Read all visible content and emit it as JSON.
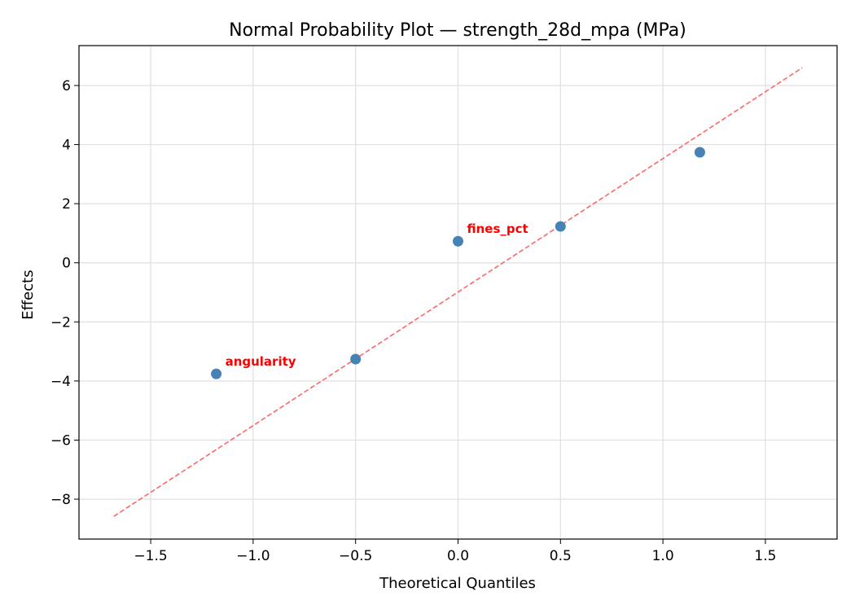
{
  "chart_data": {
    "type": "scatter",
    "title": "Normal Probability Plot — strength_28d_mpa (MPa)",
    "xlabel": "Theoretical Quantiles",
    "ylabel": "Effects",
    "xlim": [
      -1.85,
      1.85
    ],
    "ylim": [
      -9.35,
      7.35
    ],
    "xticks": [
      -1.5,
      -1.0,
      -0.5,
      0.0,
      0.5,
      1.0,
      1.5
    ],
    "xtick_labels": [
      "−1.5",
      "−1.0",
      "−0.5",
      "0.0",
      "0.5",
      "1.0",
      "1.5"
    ],
    "yticks": [
      -8,
      -6,
      -4,
      -2,
      0,
      2,
      4,
      6
    ],
    "ytick_labels": [
      "−8",
      "−6",
      "−4",
      "−2",
      "0",
      "2",
      "4",
      "6"
    ],
    "grid": true,
    "points": [
      {
        "x": -1.18,
        "y": -3.76,
        "label": "angularity"
      },
      {
        "x": -0.5,
        "y": -3.26,
        "label": ""
      },
      {
        "x": 0.0,
        "y": 0.73,
        "label": "fines_pct"
      },
      {
        "x": 0.5,
        "y": 1.23,
        "label": ""
      },
      {
        "x": 1.18,
        "y": 3.74,
        "label": ""
      }
    ],
    "reference_line": {
      "x": [
        -1.68,
        1.68
      ],
      "y": [
        -8.58,
        6.6
      ],
      "style": "dashed"
    },
    "colors": {
      "points": "#4682b4",
      "line": "#ff6666",
      "labels": "#ff0000",
      "grid": "#e0e0e0"
    }
  }
}
